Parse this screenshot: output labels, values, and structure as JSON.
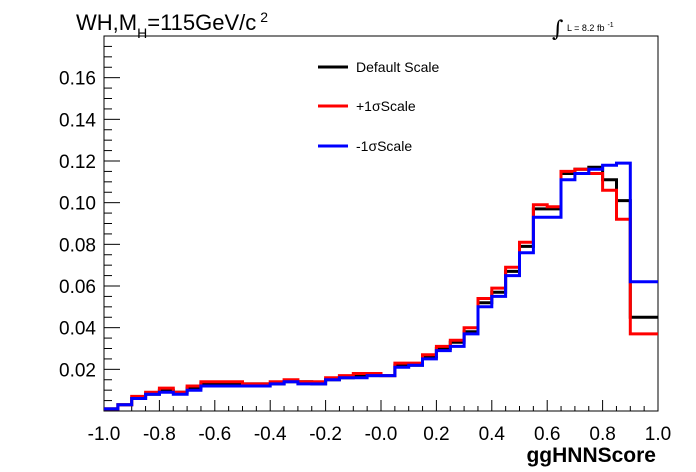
{
  "chart_data": {
    "type": "line",
    "title": {
      "main": "WH,M",
      "subscript": "H",
      "rest": "=115GeV/c",
      "superscript": "2"
    },
    "annotation": {
      "integral_symbol": "∫",
      "text": "L = 8.2 fb",
      "superscript": "-1"
    },
    "xlabel": "ggHNNScore",
    "ylabel": "",
    "xlim": [
      -1.0,
      1.0
    ],
    "ylim": [
      0.0,
      0.18
    ],
    "x_ticks": [
      -1.0,
      -0.8,
      -0.6,
      -0.4,
      -0.2,
      0.0,
      0.2,
      0.4,
      0.6,
      0.8,
      1.0
    ],
    "x_tick_labels": [
      "-1.0",
      "-0.8",
      "-0.6",
      "-0.4",
      "-0.2",
      "-0.0",
      "0.2",
      "0.4",
      "0.6",
      "0.8",
      "1.0"
    ],
    "y_ticks": [
      0.02,
      0.04,
      0.06,
      0.08,
      0.1,
      0.12,
      0.14,
      0.16
    ],
    "y_tick_labels": [
      "0.02",
      "0.04",
      "0.06",
      "0.08",
      "0.10",
      "0.12",
      "0.14",
      "0.16"
    ],
    "grid": false,
    "legend_position": "top-center",
    "bin_edges": [
      -1.0,
      -0.95,
      -0.9,
      -0.85,
      -0.8,
      -0.75,
      -0.7,
      -0.65,
      -0.6,
      -0.55,
      -0.5,
      -0.45,
      -0.4,
      -0.35,
      -0.3,
      -0.25,
      -0.2,
      -0.15,
      -0.1,
      -0.05,
      0.0,
      0.05,
      0.1,
      0.15,
      0.2,
      0.25,
      0.3,
      0.35,
      0.4,
      0.45,
      0.5,
      0.55,
      0.6,
      0.65,
      0.7,
      0.75,
      0.8,
      0.85,
      0.9,
      0.95,
      1.0
    ],
    "series": [
      {
        "name": "Default Scale",
        "color": "#000000",
        "values": [
          0.001,
          0.003,
          0.006,
          0.008,
          0.01,
          0.009,
          0.011,
          0.013,
          0.013,
          0.013,
          0.013,
          0.013,
          0.013,
          0.014,
          0.014,
          0.013,
          0.015,
          0.016,
          0.017,
          0.017,
          0.017,
          0.022,
          0.022,
          0.026,
          0.03,
          0.033,
          0.038,
          0.052,
          0.057,
          0.067,
          0.079,
          0.097,
          0.097,
          0.114,
          0.116,
          0.117,
          0.111,
          0.101,
          0.045,
          0.045
        ]
      },
      {
        "name": "+1σScale",
        "color": "#ff0000",
        "values": [
          0.001,
          0.003,
          0.007,
          0.009,
          0.011,
          0.009,
          0.012,
          0.014,
          0.014,
          0.014,
          0.013,
          0.013,
          0.014,
          0.015,
          0.014,
          0.014,
          0.016,
          0.017,
          0.018,
          0.018,
          0.017,
          0.023,
          0.023,
          0.027,
          0.031,
          0.034,
          0.04,
          0.054,
          0.059,
          0.069,
          0.081,
          0.099,
          0.098,
          0.115,
          0.116,
          0.114,
          0.106,
          0.092,
          0.037,
          0.037
        ]
      },
      {
        "name": "-1σScale",
        "color": "#0000ff",
        "values": [
          0.001,
          0.003,
          0.006,
          0.008,
          0.009,
          0.008,
          0.01,
          0.012,
          0.012,
          0.012,
          0.012,
          0.012,
          0.013,
          0.014,
          0.013,
          0.013,
          0.015,
          0.016,
          0.016,
          0.017,
          0.017,
          0.021,
          0.022,
          0.025,
          0.029,
          0.031,
          0.037,
          0.05,
          0.055,
          0.065,
          0.076,
          0.093,
          0.093,
          0.111,
          0.114,
          0.116,
          0.118,
          0.119,
          0.062,
          0.062
        ]
      }
    ]
  }
}
